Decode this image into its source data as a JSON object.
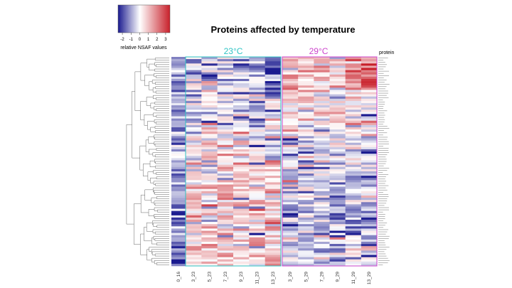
{
  "chart_data": {
    "type": "heatmap",
    "title": "Proteins affected by temperature",
    "legend": {
      "label": "relative NSAF values",
      "ticks": [
        -2,
        -1,
        0,
        1,
        2,
        3
      ],
      "range": [
        -2.5,
        3.5
      ],
      "colors": {
        "low": "#1a1a8f",
        "mid": "#ffffff",
        "high": "#c8202a"
      }
    },
    "columns": [
      "0_16",
      "3_23",
      "5_23",
      "7_23",
      "9_23",
      "11_23",
      "13_23",
      "3_29",
      "5_29",
      "7_29",
      "9_29",
      "11_29",
      "13_29"
    ],
    "groups": [
      {
        "label": "23°C",
        "color": "#2ec4c4",
        "columns": [
          "3_23",
          "5_23",
          "7_23",
          "9_23",
          "11_23",
          "13_23"
        ]
      },
      {
        "label": "29°C",
        "color": "#cc44cc",
        "columns": [
          "3_29",
          "5_29",
          "7_29",
          "9_29",
          "11_29",
          "13_29"
        ]
      }
    ],
    "row_header": "protein",
    "row_count": 95,
    "generator": {
      "seed": 12345,
      "note": "cell values estimated to reproduce visual pattern"
    }
  }
}
